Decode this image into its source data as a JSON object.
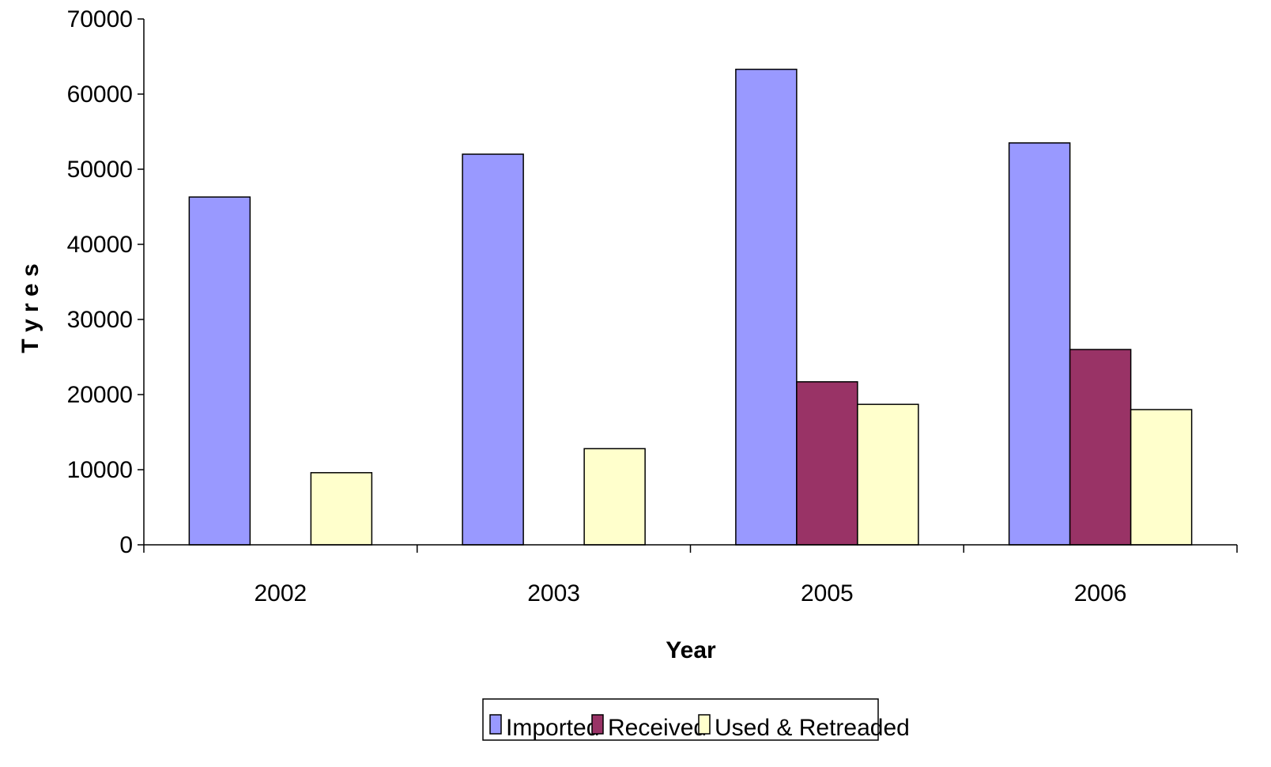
{
  "chart_data": {
    "type": "bar",
    "title": "",
    "xlabel": "Year",
    "ylabel": "T y r e s",
    "categories": [
      "2002",
      "2003",
      "2005",
      "2006"
    ],
    "ylim": [
      0,
      70000
    ],
    "yticks": [
      "0",
      "10000",
      "20000",
      "30000",
      "40000",
      "50000",
      "60000",
      "70000"
    ],
    "grid": false,
    "legend_position": "bottom",
    "series": [
      {
        "name": "Imported",
        "color": "#9999ff",
        "values": [
          46300,
          52000,
          63300,
          53500
        ]
      },
      {
        "name": "Received",
        "color": "#993366",
        "values": [
          0,
          0,
          21700,
          26000
        ]
      },
      {
        "name": "Used & Retreaded",
        "color": "#ffffcc",
        "values": [
          9600,
          12800,
          18700,
          18000
        ]
      }
    ]
  }
}
